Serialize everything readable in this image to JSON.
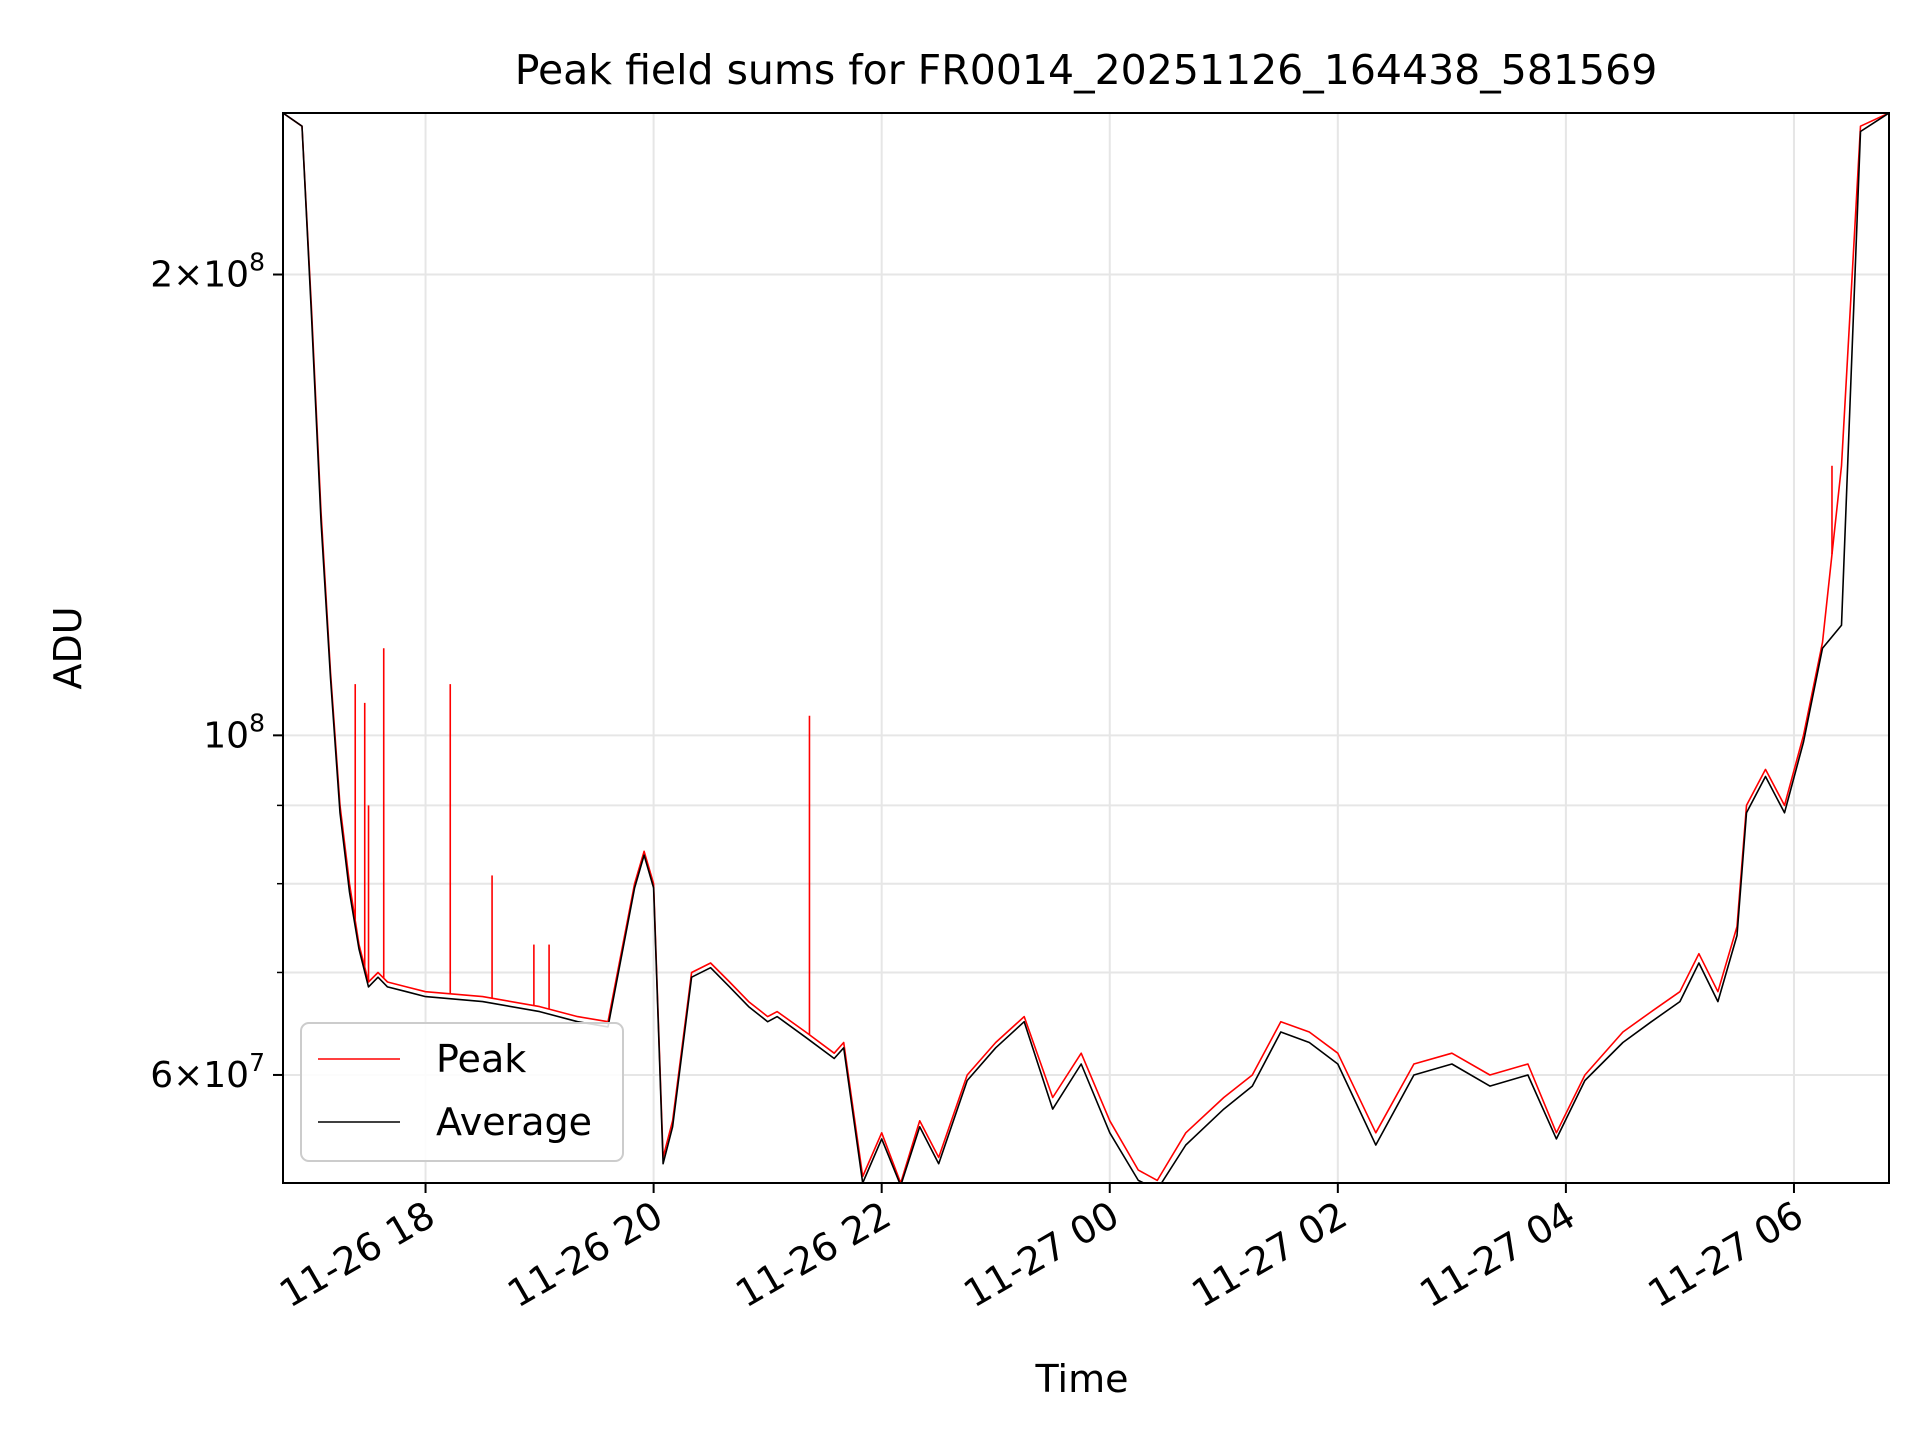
{
  "chart_data": {
    "type": "line",
    "title": "Peak field sums for FR0014_20251126_164438_581569",
    "xlabel": "Time",
    "ylabel": "ADU",
    "yscale": "log",
    "ylim": [
      51000000,
      255000000
    ],
    "xlim": [
      "2025-11-26 16:45",
      "2025-11-27 06:50"
    ],
    "grid": true,
    "legend": {
      "position": "lower-left"
    },
    "x_ticks": [
      {
        "label": "11-26 18",
        "value": "2025-11-26 18:00"
      },
      {
        "label": "11-26 20",
        "value": "2025-11-26 20:00"
      },
      {
        "label": "11-26 22",
        "value": "2025-11-26 22:00"
      },
      {
        "label": "11-27 00",
        "value": "2025-11-27 00:00"
      },
      {
        "label": "11-27 02",
        "value": "2025-11-27 02:00"
      },
      {
        "label": "11-27 04",
        "value": "2025-11-27 04:00"
      },
      {
        "label": "11-27 06",
        "value": "2025-11-27 06:00"
      }
    ],
    "y_ticks": [
      {
        "base": "6",
        "exp": "7",
        "value": 60000000
      },
      {
        "base": "",
        "exp": "8",
        "value": 100000000
      },
      {
        "base": "2",
        "exp": "8",
        "value": 200000000
      }
    ],
    "y_minor_ticks": [
      70000000,
      80000000,
      90000000
    ],
    "series": [
      {
        "name": "Peak",
        "color": "#ff0000",
        "x": [
          "2025-11-26 16:45",
          "2025-11-26 16:55",
          "2025-11-26 17:00",
          "2025-11-26 17:05",
          "2025-11-26 17:10",
          "2025-11-26 17:15",
          "2025-11-26 17:20",
          "2025-11-26 17:25",
          "2025-11-26 17:30",
          "2025-11-26 17:35",
          "2025-11-26 17:40",
          "2025-11-26 17:50",
          "2025-11-26 18:00",
          "2025-11-26 18:30",
          "2025-11-26 19:00",
          "2025-11-26 19:20",
          "2025-11-26 19:36",
          "2025-11-26 19:50",
          "2025-11-26 19:55",
          "2025-11-26 20:00",
          "2025-11-26 20:05",
          "2025-11-26 20:10",
          "2025-11-26 20:20",
          "2025-11-26 20:30",
          "2025-11-26 20:40",
          "2025-11-26 20:50",
          "2025-11-26 21:00",
          "2025-11-26 21:05",
          "2025-11-26 21:20",
          "2025-11-26 21:35",
          "2025-11-26 21:40",
          "2025-11-26 21:50",
          "2025-11-26 22:00",
          "2025-11-26 22:10",
          "2025-11-26 22:20",
          "2025-11-26 22:30",
          "2025-11-26 22:45",
          "2025-11-26 23:00",
          "2025-11-26 23:15",
          "2025-11-26 23:30",
          "2025-11-26 23:45",
          "2025-11-27 00:00",
          "2025-11-27 00:15",
          "2025-11-27 00:25",
          "2025-11-27 00:40",
          "2025-11-27 01:00",
          "2025-11-27 01:15",
          "2025-11-27 01:30",
          "2025-11-27 01:45",
          "2025-11-27 02:00",
          "2025-11-27 02:20",
          "2025-11-27 02:40",
          "2025-11-27 03:00",
          "2025-11-27 03:20",
          "2025-11-27 03:40",
          "2025-11-27 03:55",
          "2025-11-27 04:10",
          "2025-11-27 04:30",
          "2025-11-27 04:45",
          "2025-11-27 05:00",
          "2025-11-27 05:10",
          "2025-11-27 05:20",
          "2025-11-27 05:30",
          "2025-11-27 05:35",
          "2025-11-27 05:45",
          "2025-11-27 05:55",
          "2025-11-27 06:05",
          "2025-11-27 06:15",
          "2025-11-27 06:25",
          "2025-11-27 06:35",
          "2025-11-27 06:50"
        ],
        "y": [
          255000000,
          250000000,
          190000000,
          140000000,
          110000000,
          90000000,
          80000000,
          73000000,
          69000000,
          70000000,
          69000000,
          68500000,
          68000000,
          67500000,
          66500000,
          65500000,
          65000000,
          80000000,
          84000000,
          80000000,
          53000000,
          56000000,
          70000000,
          71000000,
          69000000,
          67000000,
          65500000,
          66000000,
          64000000,
          62000000,
          63000000,
          51500000,
          55000000,
          51000000,
          56000000,
          53000000,
          60000000,
          63000000,
          65500000,
          58000000,
          62000000,
          56000000,
          52000000,
          51200000,
          55000000,
          58000000,
          60000000,
          65000000,
          64000000,
          62000000,
          55000000,
          61000000,
          62000000,
          60000000,
          61000000,
          55000000,
          60000000,
          64000000,
          66000000,
          68000000,
          72000000,
          68000000,
          75000000,
          90000000,
          95000000,
          90000000,
          100000000,
          115000000,
          150000000,
          250000000,
          255000000
        ],
        "spikes": [
          {
            "x": "2025-11-26 17:23",
            "y": 108000000
          },
          {
            "x": "2025-11-26 17:28",
            "y": 105000000
          },
          {
            "x": "2025-11-26 17:30",
            "y": 90000000
          },
          {
            "x": "2025-11-26 17:38",
            "y": 114000000
          },
          {
            "x": "2025-11-26 18:13",
            "y": 108000000
          },
          {
            "x": "2025-11-26 18:35",
            "y": 81000000
          },
          {
            "x": "2025-11-26 18:57",
            "y": 73000000
          },
          {
            "x": "2025-11-26 19:05",
            "y": 73000000
          },
          {
            "x": "2025-11-26 21:22",
            "y": 103000000
          },
          {
            "x": "2025-11-27 06:20",
            "y": 150000000
          }
        ]
      },
      {
        "name": "Average",
        "color": "#000000",
        "x": [
          "2025-11-26 16:45",
          "2025-11-26 16:55",
          "2025-11-26 17:00",
          "2025-11-26 17:05",
          "2025-11-26 17:10",
          "2025-11-26 17:15",
          "2025-11-26 17:20",
          "2025-11-26 17:25",
          "2025-11-26 17:30",
          "2025-11-26 17:35",
          "2025-11-26 17:40",
          "2025-11-26 17:50",
          "2025-11-26 18:00",
          "2025-11-26 18:30",
          "2025-11-26 19:00",
          "2025-11-26 19:20",
          "2025-11-26 19:36",
          "2025-11-26 19:50",
          "2025-11-26 19:55",
          "2025-11-26 20:00",
          "2025-11-26 20:05",
          "2025-11-26 20:10",
          "2025-11-26 20:20",
          "2025-11-26 20:30",
          "2025-11-26 20:40",
          "2025-11-26 20:50",
          "2025-11-26 21:00",
          "2025-11-26 21:05",
          "2025-11-26 21:20",
          "2025-11-26 21:35",
          "2025-11-26 21:40",
          "2025-11-26 21:50",
          "2025-11-26 22:00",
          "2025-11-26 22:10",
          "2025-11-26 22:20",
          "2025-11-26 22:30",
          "2025-11-26 22:45",
          "2025-11-26 23:00",
          "2025-11-26 23:15",
          "2025-11-26 23:30",
          "2025-11-26 23:45",
          "2025-11-27 00:00",
          "2025-11-27 00:15",
          "2025-11-27 00:25",
          "2025-11-27 00:40",
          "2025-11-27 01:00",
          "2025-11-27 01:15",
          "2025-11-27 01:30",
          "2025-11-27 01:45",
          "2025-11-27 02:00",
          "2025-11-27 02:20",
          "2025-11-27 02:40",
          "2025-11-27 03:00",
          "2025-11-27 03:20",
          "2025-11-27 03:40",
          "2025-11-27 03:55",
          "2025-11-27 04:10",
          "2025-11-27 04:30",
          "2025-11-27 04:45",
          "2025-11-27 05:00",
          "2025-11-27 05:10",
          "2025-11-27 05:20",
          "2025-11-27 05:30",
          "2025-11-27 05:35",
          "2025-11-27 05:45",
          "2025-11-27 05:55",
          "2025-11-27 06:05",
          "2025-11-27 06:15",
          "2025-11-27 06:25",
          "2025-11-27 06:35",
          "2025-11-27 06:50"
        ],
        "y": [
          255000000,
          250000000,
          188000000,
          138000000,
          109000000,
          89000000,
          79000000,
          72500000,
          68500000,
          69500000,
          68500000,
          68000000,
          67500000,
          67000000,
          66000000,
          65000000,
          64500000,
          79500000,
          83500000,
          79500000,
          52500000,
          55500000,
          69500000,
          70500000,
          68500000,
          66500000,
          65000000,
          65500000,
          63500000,
          61500000,
          62500000,
          51000000,
          54500000,
          50800000,
          55500000,
          52500000,
          59500000,
          62500000,
          65000000,
          57000000,
          61000000,
          55000000,
          51200000,
          50500000,
          54000000,
          57000000,
          59000000,
          64000000,
          63000000,
          61000000,
          54000000,
          60000000,
          61000000,
          59000000,
          60000000,
          54500000,
          59500000,
          63000000,
          65000000,
          67000000,
          71000000,
          67000000,
          74000000,
          89000000,
          94000000,
          89000000,
          99000000,
          114000000,
          118000000,
          248000000,
          255000000
        ]
      }
    ]
  }
}
